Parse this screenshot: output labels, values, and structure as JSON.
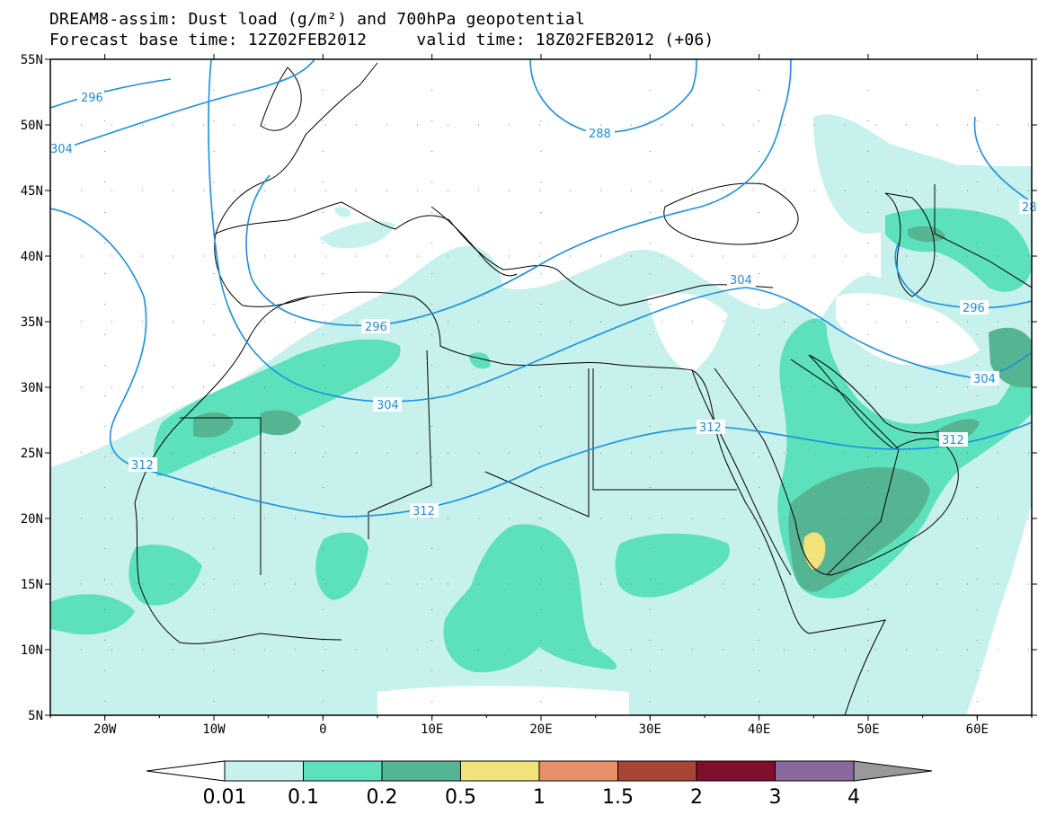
{
  "title": {
    "line1": "DREAM8-assim: Dust load (g/m²) and 700hPa geopotential",
    "line2": "Forecast base time: 12Z02FEB2012     valid time: 18Z02FEB2012 (+06)"
  },
  "axes": {
    "lat_labels": [
      "55N",
      "50N",
      "45N",
      "40N",
      "35N",
      "30N",
      "25N",
      "20N",
      "15N",
      "10N",
      "5N"
    ],
    "lon_labels": [
      "20W",
      "10W",
      "0",
      "10E",
      "20E",
      "30E",
      "40E",
      "50E",
      "60E"
    ],
    "lon_range": [
      -25,
      65
    ],
    "lat_range": [
      5,
      55
    ]
  },
  "contours": {
    "color": "#1a8fe0",
    "labels": [
      "296",
      "304",
      "288",
      "304",
      "296",
      "304",
      "312",
      "312",
      "312",
      "296",
      "304",
      "312",
      "28"
    ]
  },
  "colorbar": {
    "levels": [
      "0.01",
      "0.1",
      "0.2",
      "0.5",
      "1",
      "1.5",
      "2",
      "3",
      "4"
    ],
    "colors": [
      "#ffffff",
      "#c6f1ec",
      "#5de0bc",
      "#55b592",
      "#f2e27a",
      "#e8906a",
      "#a84535",
      "#7f0f2c",
      "#8a6a9e",
      "#999999"
    ]
  },
  "dust_colors": {
    "low": "#c6f1ec",
    "mid": "#5de0bc",
    "high": "#55b592",
    "peak": "#f2e27a"
  }
}
